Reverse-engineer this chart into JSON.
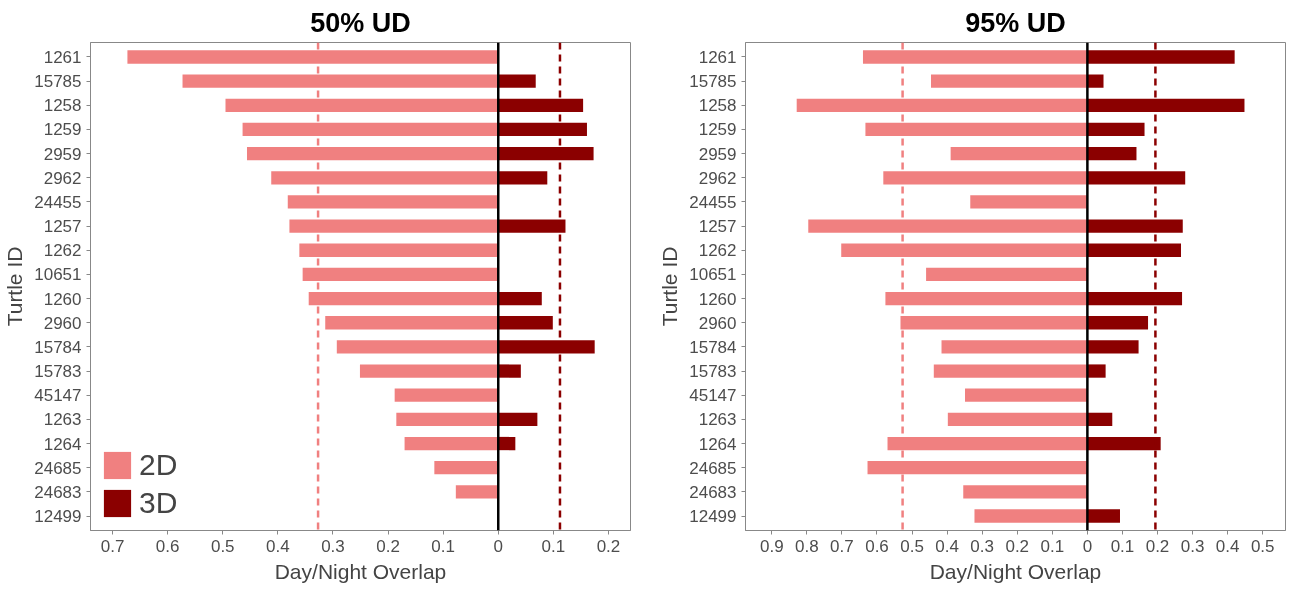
{
  "chart_data": [
    {
      "type": "bar",
      "orientation": "horizontal",
      "stacked": true,
      "title": "50% UD",
      "xlabel": "Day/Night Overlap",
      "ylabel": "Turtle ID",
      "categories": [
        "1261",
        "15785",
        "1258",
        "1259",
        "2959",
        "2962",
        "24455",
        "1257",
        "1262",
        "10651",
        "1260",
        "2960",
        "15784",
        "15783",
        "45147",
        "1263",
        "1264",
        "24685",
        "24683",
        "12499"
      ],
      "series": [
        {
          "name": "2D",
          "color": "#f08080",
          "values": [
            -0.673,
            -0.573,
            -0.495,
            -0.464,
            -0.456,
            -0.412,
            -0.382,
            -0.379,
            -0.361,
            -0.355,
            -0.344,
            -0.314,
            -0.293,
            -0.251,
            -0.188,
            -0.185,
            -0.17,
            -0.116,
            -0.077,
            null
          ]
        },
        {
          "name": "3D",
          "color": "#8b0000",
          "values": [
            null,
            0.068,
            0.154,
            0.161,
            0.173,
            0.089,
            null,
            0.122,
            null,
            null,
            0.079,
            0.099,
            0.175,
            0.041,
            null,
            0.071,
            0.031,
            null,
            null,
            null
          ]
        }
      ],
      "xlim": [
        -0.74,
        0.24
      ],
      "xticks": [
        {
          "value": -0.7,
          "label": "0.7"
        },
        {
          "value": -0.6,
          "label": "0.6"
        },
        {
          "value": -0.5,
          "label": "0.5"
        },
        {
          "value": -0.4,
          "label": "0.4"
        },
        {
          "value": -0.3,
          "label": "0.3"
        },
        {
          "value": -0.2,
          "label": "0.2"
        },
        {
          "value": -0.1,
          "label": "0.1"
        },
        0,
        0.1,
        0.2
      ],
      "ref_lines": [
        {
          "axis": "x",
          "value": -0.327,
          "color": "#f08080",
          "line_style": "dashed"
        },
        {
          "axis": "x",
          "value": 0.112,
          "color": "#8b0000",
          "line_style": "dashed"
        },
        {
          "axis": "x",
          "value": 0,
          "color": "#000000",
          "line_style": "solid"
        }
      ],
      "grid": false,
      "legend": "bottom left"
    },
    {
      "type": "bar",
      "orientation": "horizontal",
      "stacked": true,
      "title": "95% UD",
      "xlabel": "Day/Night Overlap",
      "ylabel": "Turtle ID",
      "categories": [
        "1261",
        "15785",
        "1258",
        "1259",
        "2959",
        "2962",
        "24455",
        "1257",
        "1262",
        "10651",
        "1260",
        "2960",
        "15784",
        "15783",
        "45147",
        "1263",
        "1264",
        "24685",
        "24683",
        "12499"
      ],
      "series": [
        {
          "color": "#f08080",
          "values": [
            -0.64,
            -0.446,
            -0.829,
            -0.633,
            -0.39,
            -0.582,
            -0.334,
            -0.796,
            -0.702,
            -0.46,
            -0.576,
            -0.533,
            -0.416,
            -0.438,
            -0.349,
            -0.398,
            -0.57,
            -0.627,
            -0.354,
            -0.322
          ]
        },
        {
          "color": "#8b0000",
          "values": [
            0.42,
            0.046,
            0.448,
            0.163,
            0.14,
            0.279,
            null,
            0.272,
            0.267,
            null,
            0.27,
            0.173,
            0.146,
            0.052,
            null,
            0.071,
            0.209,
            null,
            null,
            0.093
          ]
        }
      ],
      "xlim": [
        -0.975,
        0.565
      ],
      "xticks": [
        {
          "value": -0.9,
          "label": "0.9"
        },
        {
          "value": -0.8,
          "label": "0.8"
        },
        {
          "value": -0.7,
          "label": "0.7"
        },
        {
          "value": -0.6,
          "label": "0.6"
        },
        {
          "value": -0.5,
          "label": "0.5"
        },
        {
          "value": -0.4,
          "label": "0.4"
        },
        {
          "value": -0.3,
          "label": "0.3"
        },
        {
          "value": -0.2,
          "label": "0.2"
        },
        {
          "value": -0.1,
          "label": "0.1"
        },
        0,
        0.1,
        0.2,
        0.3,
        0.4,
        0.5
      ],
      "ref_lines": [
        {
          "axis": "x",
          "value": -0.527,
          "color": "#f08080",
          "line_style": "dashed"
        },
        {
          "axis": "x",
          "value": 0.194,
          "color": "#8b0000",
          "line_style": "dashed"
        },
        {
          "axis": "x",
          "value": 0,
          "color": "#000000",
          "line_style": "solid"
        }
      ],
      "grid": false,
      "legend": false
    }
  ]
}
